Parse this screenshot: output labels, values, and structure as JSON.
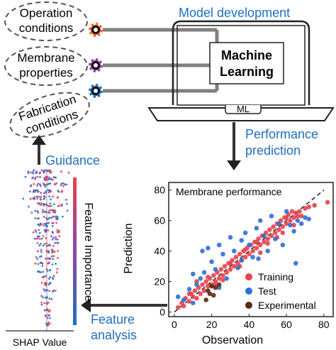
{
  "inputs": {
    "operation": [
      "Operation",
      "conditions"
    ],
    "membrane": [
      "Membrane",
      "properties"
    ],
    "fabrication": [
      "Fabrication",
      "conditions"
    ]
  },
  "model": {
    "title": "Model development",
    "ml_line1": "Machine",
    "ml_line2": "Learning",
    "laptop_label": "ML"
  },
  "steps": {
    "performance": [
      "Performance",
      "prediction"
    ],
    "guidance": "Guidance",
    "feature": [
      "Feature",
      "analysis"
    ]
  },
  "shap": {
    "xlabel": "SHAP Value",
    "importance_label": "Feature Importance"
  },
  "colors": {
    "accent_blue": "#1f6fbf",
    "gear_orange": "#f26522",
    "gear_purple": "#8e44ad",
    "gear_blue": "#1f6fbf",
    "training": "#e8414a",
    "test": "#2f6fd6",
    "experimental": "#5a2a12"
  },
  "chart_data": {
    "type": "scatter",
    "title": "Membrane performance",
    "xlabel": "Observation",
    "ylabel": "Prediction",
    "xlim": [
      -3,
      85
    ],
    "ylim": [
      -3,
      85
    ],
    "xticks": [
      0,
      20,
      40,
      60,
      80
    ],
    "yticks": [
      0,
      20,
      40,
      60,
      80
    ],
    "legend": "bottom-right",
    "series": [
      {
        "name": "Training",
        "color": "#e8414a",
        "points": [
          [
            2,
            3
          ],
          [
            4,
            6
          ],
          [
            5,
            4
          ],
          [
            6,
            9
          ],
          [
            8,
            7
          ],
          [
            9,
            12
          ],
          [
            10,
            10
          ],
          [
            11,
            14
          ],
          [
            12,
            9
          ],
          [
            13,
            16
          ],
          [
            14,
            12
          ],
          [
            15,
            18
          ],
          [
            16,
            14
          ],
          [
            17,
            20
          ],
          [
            18,
            17
          ],
          [
            19,
            22
          ],
          [
            20,
            18
          ],
          [
            21,
            24
          ],
          [
            22,
            20
          ],
          [
            23,
            26
          ],
          [
            24,
            22
          ],
          [
            25,
            28
          ],
          [
            26,
            24
          ],
          [
            27,
            30
          ],
          [
            28,
            26
          ],
          [
            29,
            32
          ],
          [
            30,
            28
          ],
          [
            31,
            34
          ],
          [
            32,
            30
          ],
          [
            33,
            36
          ],
          [
            34,
            32
          ],
          [
            35,
            38
          ],
          [
            36,
            34
          ],
          [
            37,
            40
          ],
          [
            38,
            36
          ],
          [
            39,
            42
          ],
          [
            40,
            38
          ],
          [
            41,
            44
          ],
          [
            42,
            40
          ],
          [
            43,
            46
          ],
          [
            44,
            42
          ],
          [
            45,
            48
          ],
          [
            46,
            44
          ],
          [
            47,
            50
          ],
          [
            48,
            46
          ],
          [
            49,
            52
          ],
          [
            50,
            48
          ],
          [
            51,
            54
          ],
          [
            52,
            50
          ],
          [
            53,
            56
          ],
          [
            54,
            52
          ],
          [
            55,
            58
          ],
          [
            56,
            54
          ],
          [
            57,
            60
          ],
          [
            58,
            56
          ],
          [
            59,
            62
          ],
          [
            60,
            58
          ],
          [
            61,
            64
          ],
          [
            62,
            60
          ],
          [
            63,
            66
          ],
          [
            64,
            62
          ],
          [
            65,
            65
          ],
          [
            66,
            63
          ],
          [
            67,
            66
          ],
          [
            70,
            68
          ],
          [
            72,
            69
          ],
          [
            75,
            70
          ],
          [
            82,
            72
          ],
          [
            30,
            32
          ],
          [
            26,
            21
          ],
          [
            35,
            30
          ],
          [
            44,
            46
          ],
          [
            50,
            45
          ],
          [
            55,
            49
          ],
          [
            60,
            62
          ],
          [
            18,
            23
          ],
          [
            22,
            18
          ],
          [
            38,
            41
          ],
          [
            46,
            39
          ],
          [
            58,
            52
          ],
          [
            12,
            20
          ],
          [
            8,
            12
          ],
          [
            64,
            57
          ],
          [
            68,
            63
          ]
        ]
      },
      {
        "name": "Test",
        "color": "#2f6fd6",
        "points": [
          [
            2,
            10
          ],
          [
            5,
            8
          ],
          [
            8,
            15
          ],
          [
            10,
            6
          ],
          [
            12,
            18
          ],
          [
            14,
            22
          ],
          [
            16,
            26
          ],
          [
            18,
            42
          ],
          [
            20,
            33
          ],
          [
            22,
            28
          ],
          [
            24,
            44
          ],
          [
            26,
            38
          ],
          [
            28,
            22
          ],
          [
            30,
            49
          ],
          [
            32,
            40
          ],
          [
            34,
            29
          ],
          [
            36,
            47
          ],
          [
            38,
            52
          ],
          [
            40,
            44
          ],
          [
            42,
            36
          ],
          [
            44,
            55
          ],
          [
            46,
            60
          ],
          [
            48,
            50
          ],
          [
            50,
            40
          ],
          [
            52,
            63
          ],
          [
            54,
            48
          ],
          [
            56,
            58
          ],
          [
            58,
            44
          ],
          [
            60,
            66
          ],
          [
            62,
            57
          ],
          [
            64,
            53
          ],
          [
            66,
            60
          ],
          [
            68,
            58
          ],
          [
            70,
            62
          ],
          [
            72,
            61
          ],
          [
            65,
            32
          ],
          [
            15,
            40
          ],
          [
            10,
            25
          ],
          [
            24,
            16
          ],
          [
            36,
            34
          ],
          [
            45,
            35
          ]
        ]
      },
      {
        "name": "Experimental",
        "color": "#5a2a12",
        "points": [
          [
            17,
            8
          ],
          [
            18,
            14
          ],
          [
            19,
            12
          ],
          [
            20,
            17
          ],
          [
            21,
            11
          ],
          [
            22,
            16
          ],
          [
            24,
            18
          ]
        ]
      }
    ],
    "fit_line": [
      [
        0,
        0
      ],
      [
        80,
        80
      ]
    ]
  }
}
